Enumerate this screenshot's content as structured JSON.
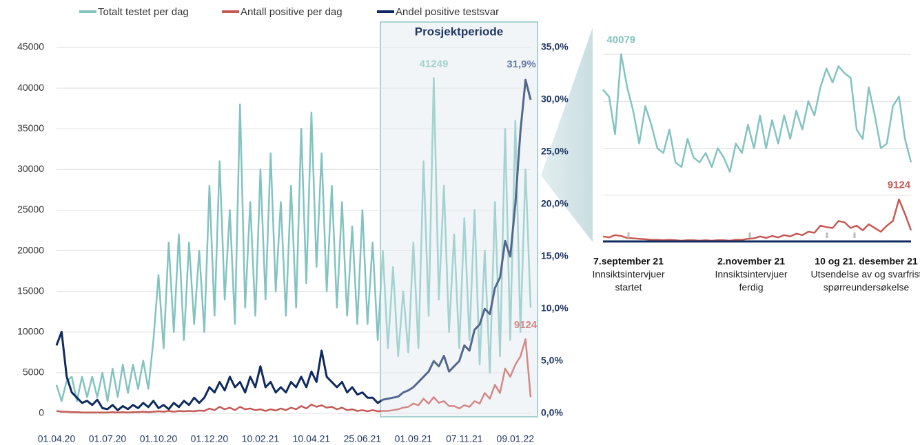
{
  "chart_data": [
    {
      "type": "line",
      "legend": "top",
      "grid": true,
      "annotations": [
        {
          "text": "Prosjektperiode"
        }
      ],
      "categories": [
        "01.04.20",
        null,
        null,
        null,
        null,
        null,
        null,
        null,
        null,
        null,
        "01.07.20",
        null,
        null,
        null,
        null,
        null,
        null,
        null,
        null,
        null,
        "01.10.20",
        null,
        null,
        null,
        null,
        null,
        null,
        null,
        null,
        null,
        "01.12.20",
        null,
        null,
        null,
        null,
        null,
        null,
        null,
        null,
        null,
        "10.02.21",
        null,
        null,
        null,
        null,
        null,
        null,
        null,
        null,
        null,
        "10.04.21",
        null,
        null,
        null,
        null,
        null,
        null,
        null,
        null,
        null,
        "25.06.21",
        null,
        null,
        null,
        null,
        null,
        null,
        null,
        null,
        null,
        "01.09.21",
        null,
        null,
        null,
        null,
        null,
        null,
        null,
        null,
        null,
        "07.11.21",
        null,
        null,
        null,
        null,
        null,
        null,
        null,
        null,
        null,
        "09.01.22",
        null,
        null,
        null
      ],
      "ylim": [
        0,
        45000
      ],
      "yticks": [
        0,
        5000,
        10000,
        15000,
        20000,
        25000,
        30000,
        35000,
        40000,
        45000
      ],
      "y2lim": [
        0,
        35
      ],
      "y2ticks": [
        {
          "value": 0,
          "label": "0,0%"
        },
        {
          "value": 5,
          "label": "5,0%"
        },
        {
          "value": 10,
          "label": "10,0%"
        },
        {
          "value": 15,
          "label": "15,0%"
        },
        {
          "value": 20,
          "label": "20,0%"
        },
        {
          "value": 25,
          "label": "25,0%"
        },
        {
          "value": 30,
          "label": "30,0%"
        },
        {
          "value": 35,
          "label": "35,0%"
        }
      ],
      "series": [
        {
          "name": "Totalt testet per dag",
          "color": "#82c3c1",
          "labelled": [
            74
          ],
          "values": [
            3500,
            1500,
            4000,
            4500,
            1500,
            4500,
            2000,
            4500,
            2000,
            5000,
            1500,
            5500,
            2000,
            6000,
            2500,
            6000,
            3000,
            6500,
            3000,
            9000,
            17000,
            8000,
            21000,
            10000,
            22000,
            9000,
            21000,
            11000,
            20000,
            10000,
            28000,
            12000,
            31000,
            14000,
            25000,
            11000,
            38000,
            13000,
            26000,
            12000,
            30000,
            14000,
            32000,
            15000,
            26000,
            12000,
            28000,
            13000,
            35000,
            16000,
            37000,
            18000,
            32000,
            15000,
            28000,
            13000,
            26000,
            12000,
            23000,
            11000,
            25000,
            11000,
            21000,
            9000,
            20000,
            8000,
            18000,
            7000,
            15000,
            7500,
            21000,
            8000,
            31000,
            12000,
            41249,
            14000,
            28000,
            10000,
            22000,
            8000,
            24000,
            9000,
            25000,
            6000,
            20000,
            5000,
            26000,
            7000,
            35000,
            9000,
            36000,
            10000,
            30000,
            13000
          ]
        },
        {
          "name": "Antall positive per dag",
          "color": "#c55a55",
          "labelled": [
            92
          ],
          "values": [
            300,
            200,
            200,
            150,
            150,
            100,
            100,
            100,
            100,
            100,
            100,
            150,
            100,
            150,
            100,
            150,
            150,
            200,
            150,
            200,
            250,
            200,
            300,
            200,
            300,
            250,
            300,
            250,
            350,
            300,
            600,
            400,
            800,
            500,
            700,
            400,
            800,
            500,
            600,
            400,
            500,
            300,
            500,
            350,
            600,
            400,
            700,
            500,
            900,
            600,
            1100,
            800,
            1000,
            700,
            800,
            500,
            700,
            400,
            500,
            300,
            400,
            250,
            400,
            250,
            300,
            300,
            400,
            500,
            700,
            800,
            1200,
            1000,
            1800,
            1200,
            2000,
            1300,
            1500,
            900,
            900,
            600,
            1000,
            800,
            1500,
            1200,
            2500,
            1800,
            3500,
            2500,
            5500,
            4500,
            6000,
            7000,
            9124,
            2000
          ]
        },
        {
          "name": "Andel positive testsvar",
          "color": "#0e2a5e",
          "axis": "y2",
          "value_labels": {
            "92": "31,9%"
          },
          "values": [
            6.5,
            7.8,
            3.5,
            2.0,
            1.5,
            1.0,
            1.2,
            0.8,
            1.3,
            0.5,
            0.4,
            0.8,
            0.3,
            0.7,
            0.4,
            0.8,
            0.5,
            1.0,
            0.6,
            1.2,
            0.5,
            0.8,
            0.4,
            1.0,
            0.6,
            1.2,
            0.8,
            1.5,
            1.0,
            1.5,
            2.5,
            2.0,
            3.0,
            2.2,
            3.5,
            2.5,
            3.0,
            2.0,
            3.5,
            2.5,
            4.5,
            2.5,
            3.0,
            2.0,
            2.5,
            2.0,
            3.0,
            2.5,
            3.5,
            2.5,
            4.0,
            3.0,
            6.0,
            3.5,
            3.0,
            2.5,
            3.0,
            2.0,
            2.5,
            1.8,
            2.0,
            1.5,
            1.5,
            1.0,
            1.3,
            1.4,
            1.5,
            1.6,
            2.0,
            2.2,
            2.5,
            3.0,
            3.5,
            4.0,
            5.0,
            4.5,
            5.5,
            4.0,
            4.5,
            5.0,
            6.5,
            6.0,
            8.0,
            8.5,
            10.0,
            9.5,
            12.0,
            13.0,
            16.5,
            15.0,
            20.0,
            27.0,
            31.9,
            30.0
          ]
        }
      ]
    },
    {
      "type": "line",
      "grid": true,
      "ylim": [
        0,
        45000
      ],
      "yticks": [
        10000,
        20000,
        30000,
        40000
      ],
      "annotations": [
        {
          "title": "7.september 21",
          "text": [
            "Innsiktsintervjuer",
            "startet"
          ]
        },
        {
          "title": "2.november 21",
          "text": [
            "Innsiktsintervjuer",
            "ferdig"
          ]
        },
        {
          "title": "10 og 21. desember 21",
          "text": [
            "Utsendelse av og svarfrist",
            "spørreundersøkelse"
          ]
        }
      ],
      "series": [
        {
          "color": "#82c3c1",
          "labelled": [
            3
          ],
          "values": [
            32500,
            31000,
            23000,
            40079,
            33000,
            28000,
            21000,
            29000,
            25000,
            20000,
            19000,
            24000,
            17000,
            16000,
            22000,
            18000,
            17000,
            19000,
            16000,
            20000,
            18000,
            15000,
            21000,
            19000,
            25000,
            20000,
            27000,
            20000,
            26000,
            21000,
            27000,
            22000,
            28000,
            24000,
            30000,
            27000,
            33000,
            37000,
            34000,
            37500,
            36000,
            35000,
            24000,
            22000,
            33000,
            27000,
            20000,
            21000,
            29000,
            31000,
            22000,
            17000
          ]
        },
        {
          "color": "#c55a55",
          "labelled": [
            49
          ],
          "values": [
            1200,
            1000,
            1500,
            1300,
            900,
            800,
            700,
            600,
            500,
            500,
            400,
            500,
            400,
            300,
            400,
            400,
            300,
            400,
            300,
            400,
            400,
            300,
            500,
            500,
            700,
            800,
            1200,
            900,
            1300,
            1000,
            1500,
            1200,
            1800,
            1500,
            2200,
            2000,
            3500,
            3200,
            3000,
            4500,
            4200,
            3000,
            3500,
            2500,
            3800,
            3000,
            2200,
            3500,
            4500,
            9124,
            6000,
            2500
          ]
        }
      ]
    }
  ]
}
